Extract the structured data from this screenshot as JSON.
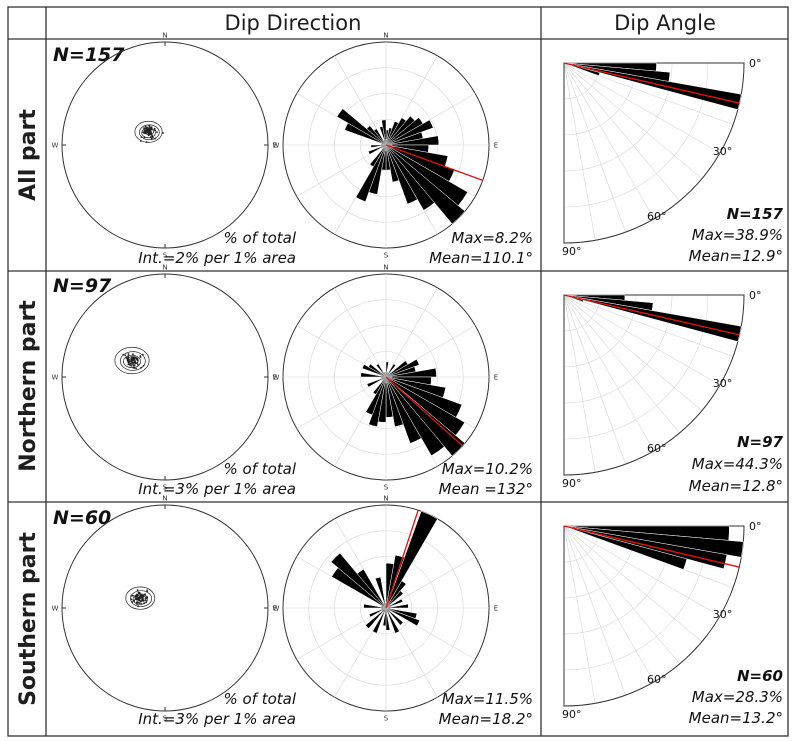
{
  "headers": {
    "dip_direction": "Dip Direction",
    "dip_angle": "Dip Angle"
  },
  "compass": [
    "N",
    "E",
    "S",
    "W"
  ],
  "angle_ticks": [
    "0°",
    "30°",
    "60°",
    "90°"
  ],
  "colors": {
    "bars": "#000000",
    "mean_line": "#e01010",
    "border": "#333333",
    "contour": "#222222"
  },
  "chart_data": [
    {
      "type": "rose",
      "row_label": "All part",
      "n_label": "N=157",
      "density": {
        "total_label": "% of total",
        "interval_label": "Int.=2% per 1% area",
        "center": [
          -1,
          -0.8
        ],
        "spread": 0.62
      },
      "dip_direction": {
        "max_label": "Max=8.2%",
        "mean_label": "Mean=110.1°",
        "max_percent": 8.2,
        "mean_azimuth": 110.1,
        "bins": [
          {
            "az": 0,
            "pct": 1.2
          },
          {
            "az": 10,
            "pct": 1.4
          },
          {
            "az": 20,
            "pct": 2.0
          },
          {
            "az": 30,
            "pct": 2.5
          },
          {
            "az": 40,
            "pct": 3.0
          },
          {
            "az": 50,
            "pct": 3.4
          },
          {
            "az": 60,
            "pct": 4.0
          },
          {
            "az": 70,
            "pct": 3.0
          },
          {
            "az": 80,
            "pct": 4.2
          },
          {
            "az": 90,
            "pct": 3.4
          },
          {
            "az": 100,
            "pct": 5.0
          },
          {
            "az": 110,
            "pct": 5.8
          },
          {
            "az": 120,
            "pct": 7.5
          },
          {
            "az": 130,
            "pct": 8.2
          },
          {
            "az": 140,
            "pct": 6.0
          },
          {
            "az": 150,
            "pct": 5.0
          },
          {
            "az": 160,
            "pct": 3.0
          },
          {
            "az": 170,
            "pct": 2.0
          },
          {
            "az": 180,
            "pct": 2.0
          },
          {
            "az": 190,
            "pct": 4.0
          },
          {
            "az": 200,
            "pct": 4.8
          },
          {
            "az": 210,
            "pct": 2.0
          },
          {
            "az": 240,
            "pct": 1.5
          },
          {
            "az": 260,
            "pct": 1.2
          },
          {
            "az": 290,
            "pct": 3.5
          },
          {
            "az": 300,
            "pct": 4.5
          },
          {
            "az": 310,
            "pct": 2.0
          },
          {
            "az": 320,
            "pct": 1.5
          },
          {
            "az": 340,
            "pct": 1.5
          },
          {
            "az": 350,
            "pct": 2.0
          }
        ]
      },
      "dip_angle": {
        "n_label": "N=157",
        "max_label": "Max=38.9%",
        "mean_label": "Mean=12.9°",
        "max_percent": 38.9,
        "mean_dip": 12.9,
        "bins": [
          {
            "dip": 5,
            "pct": 20.0
          },
          {
            "dip": 10,
            "pct": 23.0
          },
          {
            "dip": 15,
            "pct": 38.9
          },
          {
            "dip": 20,
            "pct": 8.0
          }
        ]
      }
    },
    {
      "type": "rose",
      "row_label": "Northern part",
      "n_label": "N=97",
      "density": {
        "total_label": "% of total",
        "interval_label": "Int.=3% per 1% area",
        "center": [
          -2,
          -1
        ],
        "spread": 0.78
      },
      "dip_direction": {
        "max_label": "Max=10.2%",
        "mean_label": "Mean =132°",
        "max_percent": 10.2,
        "mean_azimuth": 132,
        "bins": [
          {
            "az": 0,
            "pct": 1.5
          },
          {
            "az": 30,
            "pct": 1.5
          },
          {
            "az": 50,
            "pct": 2.5
          },
          {
            "az": 60,
            "pct": 3.5
          },
          {
            "az": 70,
            "pct": 3.0
          },
          {
            "az": 80,
            "pct": 5.0
          },
          {
            "az": 90,
            "pct": 4.5
          },
          {
            "az": 100,
            "pct": 6.0
          },
          {
            "az": 110,
            "pct": 8.0
          },
          {
            "az": 120,
            "pct": 9.0
          },
          {
            "az": 130,
            "pct": 10.2
          },
          {
            "az": 140,
            "pct": 9.0
          },
          {
            "az": 150,
            "pct": 7.0
          },
          {
            "az": 160,
            "pct": 5.0
          },
          {
            "az": 170,
            "pct": 4.0
          },
          {
            "az": 180,
            "pct": 4.5
          },
          {
            "az": 190,
            "pct": 5.0
          },
          {
            "az": 200,
            "pct": 4.0
          },
          {
            "az": 210,
            "pct": 2.0
          },
          {
            "az": 240,
            "pct": 2.0
          },
          {
            "az": 270,
            "pct": 2.5
          },
          {
            "az": 290,
            "pct": 2.5
          },
          {
            "az": 300,
            "pct": 2.0
          },
          {
            "az": 320,
            "pct": 1.5
          }
        ]
      },
      "dip_angle": {
        "n_label": "N=97",
        "max_label": "Max=44.3%",
        "mean_label": "Mean=12.8°",
        "max_percent": 44.3,
        "mean_dip": 12.8,
        "bins": [
          {
            "dip": 5,
            "pct": 15.0
          },
          {
            "dip": 10,
            "pct": 22.0
          },
          {
            "dip": 15,
            "pct": 44.3
          },
          {
            "dip": 20,
            "pct": 5.0
          }
        ]
      }
    },
    {
      "type": "rose",
      "row_label": "Southern part",
      "n_label": "N=60",
      "density": {
        "total_label": "% of total",
        "interval_label": "Int.=3% per 1% area",
        "center": [
          -1.5,
          -0.6
        ],
        "spread": 0.66
      },
      "dip_direction": {
        "max_label": "Max=11.5%",
        "mean_label": "Mean=18.2°",
        "max_percent": 11.5,
        "mean_azimuth": 18.2,
        "bins": [
          {
            "az": 0,
            "pct": 5.0
          },
          {
            "az": 10,
            "pct": 6.0
          },
          {
            "az": 20,
            "pct": 11.5
          },
          {
            "az": 30,
            "pct": 3.5
          },
          {
            "az": 40,
            "pct": 2.5
          },
          {
            "az": 60,
            "pct": 2.0
          },
          {
            "az": 80,
            "pct": 2.5
          },
          {
            "az": 100,
            "pct": 3.5
          },
          {
            "az": 110,
            "pct": 4.0
          },
          {
            "az": 130,
            "pct": 2.5
          },
          {
            "az": 150,
            "pct": 3.0
          },
          {
            "az": 170,
            "pct": 2.5
          },
          {
            "az": 180,
            "pct": 2.0
          },
          {
            "az": 200,
            "pct": 3.0
          },
          {
            "az": 220,
            "pct": 3.0
          },
          {
            "az": 240,
            "pct": 2.0
          },
          {
            "az": 270,
            "pct": 2.5
          },
          {
            "az": 300,
            "pct": 7.0
          },
          {
            "az": 310,
            "pct": 8.0
          },
          {
            "az": 320,
            "pct": 5.0
          },
          {
            "az": 340,
            "pct": 3.5
          }
        ]
      },
      "dip_angle": {
        "n_label": "N=60",
        "max_label": "Max=28.3%",
        "mean_label": "Mean=13.2°",
        "max_percent": 28.3,
        "mean_dip": 13.2,
        "bins": [
          {
            "dip": 5,
            "pct": 26.0
          },
          {
            "dip": 10,
            "pct": 28.3
          },
          {
            "dip": 15,
            "pct": 26.0
          },
          {
            "dip": 20,
            "pct": 20.0
          }
        ]
      }
    }
  ]
}
